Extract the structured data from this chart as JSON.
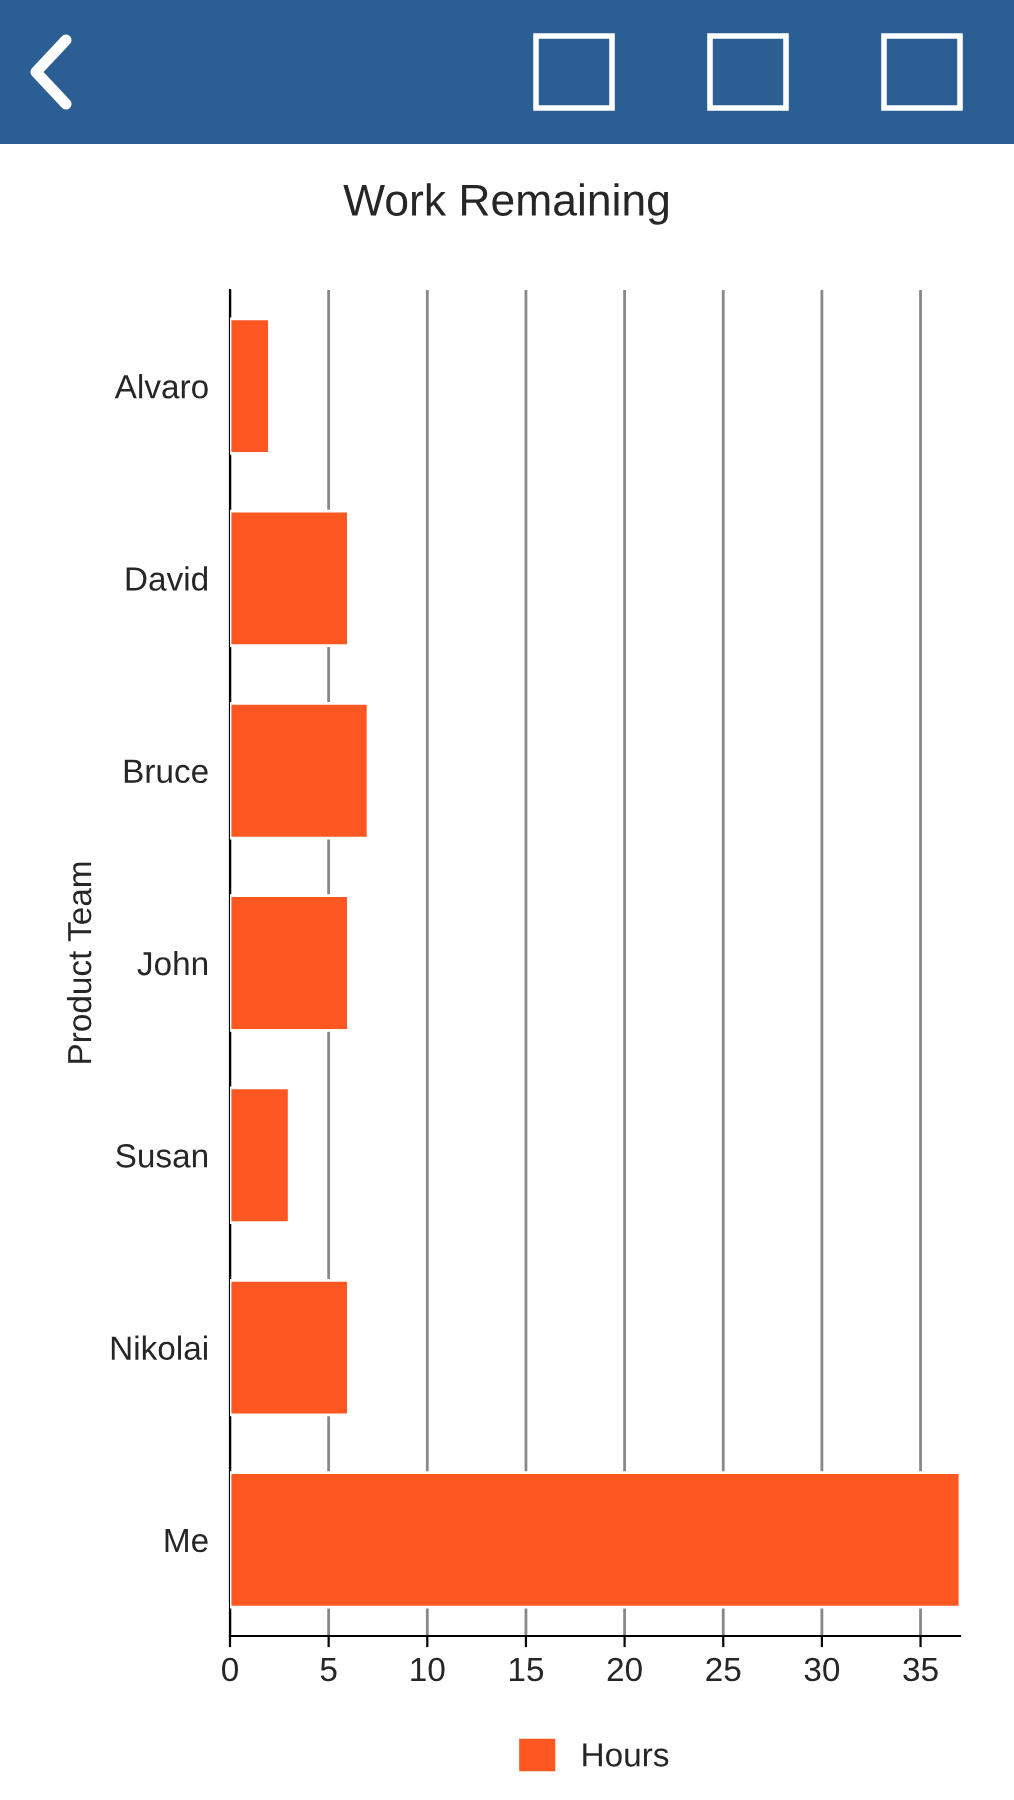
{
  "chart_data": {
    "type": "bar",
    "orientation": "horizontal",
    "title": "Work Remaining",
    "ylabel": "Product Team",
    "categories": [
      "Alvaro",
      "David",
      "Bruce",
      "John",
      "Susan",
      "Nikolai",
      "Me"
    ],
    "series": [
      {
        "name": "Hours",
        "color": "#ff5722",
        "values": [
          2,
          6,
          7,
          6,
          3,
          6,
          37
        ]
      }
    ],
    "xlim": [
      0,
      37
    ],
    "xticks": [
      0,
      5,
      10,
      15,
      20,
      25,
      30,
      35
    ],
    "grid": "x",
    "legend": "bottom"
  }
}
